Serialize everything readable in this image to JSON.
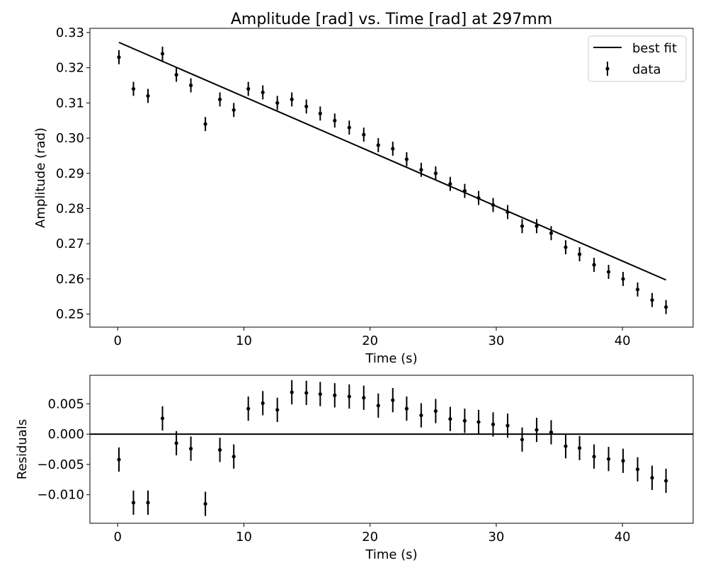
{
  "chart_data": [
    {
      "type": "scatter",
      "title": "Amplitude [rad] vs. Time [rad]  at 297mm",
      "xlabel": "Time (s)",
      "ylabel": "Amplitude (rad)",
      "xlim": [
        -2.2,
        45.6
      ],
      "ylim": [
        0.2463,
        0.3312
      ],
      "xticks": [
        0,
        10,
        20,
        30,
        40
      ],
      "xtick_labels": [
        "0",
        "10",
        "20",
        "30",
        "40"
      ],
      "yticks": [
        0.25,
        0.26,
        0.27,
        0.28,
        0.29,
        0.3,
        0.31,
        0.32,
        0.33
      ],
      "ytick_labels": [
        "0.25",
        "0.26",
        "0.27",
        "0.28",
        "0.29",
        "0.30",
        "0.31",
        "0.32",
        "0.33"
      ],
      "grid": false,
      "legend": {
        "position": "top-right",
        "entries": [
          "best fit",
          "data"
        ]
      },
      "series": [
        {
          "name": "data",
          "style": "errorbar",
          "x": [
            0.1,
            1.25,
            2.4,
            3.55,
            4.65,
            5.8,
            6.95,
            8.1,
            9.2,
            10.35,
            11.5,
            12.65,
            13.8,
            14.95,
            16.05,
            17.2,
            18.35,
            19.5,
            20.65,
            21.8,
            22.9,
            24.05,
            25.2,
            26.35,
            27.5,
            28.6,
            29.75,
            30.9,
            32.05,
            33.2,
            34.35,
            35.5,
            36.6,
            37.75,
            38.9,
            40.05,
            41.2,
            42.35,
            43.45
          ],
          "y": [
            0.323,
            0.314,
            0.312,
            0.324,
            0.318,
            0.315,
            0.304,
            0.311,
            0.308,
            0.314,
            0.313,
            0.31,
            0.311,
            0.309,
            0.307,
            0.305,
            0.303,
            0.301,
            0.298,
            0.297,
            0.294,
            0.291,
            0.29,
            0.287,
            0.285,
            0.283,
            0.281,
            0.279,
            0.275,
            0.275,
            0.273,
            0.269,
            0.267,
            0.264,
            0.262,
            0.26,
            0.257,
            0.254,
            0.252
          ],
          "yerr": 0.002,
          "color": "#000000"
        },
        {
          "name": "best fit",
          "style": "line",
          "x": [
            0.1,
            43.45
          ],
          "y": [
            0.3272,
            0.2597
          ],
          "color": "#000000"
        }
      ]
    },
    {
      "type": "scatter",
      "title": "",
      "xlabel": "Time (s)",
      "ylabel": "Residuals",
      "xlim": [
        -2.2,
        45.6
      ],
      "ylim": [
        -0.0147,
        0.0097
      ],
      "xticks": [
        0,
        10,
        20,
        30,
        40
      ],
      "xtick_labels": [
        "0",
        "10",
        "20",
        "30",
        "40"
      ],
      "yticks": [
        -0.01,
        -0.005,
        0.0,
        0.005
      ],
      "ytick_labels": [
        "−0.010",
        "−0.005",
        "0.000",
        "0.005"
      ],
      "grid": false,
      "reference_line_y": 0,
      "series": [
        {
          "style": "errorbar",
          "x": [
            0.1,
            1.25,
            2.4,
            3.55,
            4.65,
            5.8,
            6.95,
            8.1,
            9.2,
            10.35,
            11.5,
            12.65,
            13.8,
            14.95,
            16.05,
            17.2,
            18.35,
            19.5,
            20.65,
            21.8,
            22.9,
            24.05,
            25.2,
            26.35,
            27.5,
            28.6,
            29.75,
            30.9,
            32.05,
            33.2,
            34.35,
            35.5,
            36.6,
            37.75,
            38.9,
            40.05,
            41.2,
            42.35,
            43.45
          ],
          "y": [
            -0.0042,
            -0.0113,
            -0.0113,
            0.0026,
            -0.0015,
            -0.0024,
            -0.0115,
            -0.0026,
            -0.0037,
            0.0042,
            0.0051,
            0.004,
            0.0069,
            0.0068,
            0.0066,
            0.0064,
            0.0062,
            0.006,
            0.0047,
            0.0056,
            0.0042,
            0.0031,
            0.0038,
            0.0025,
            0.0022,
            0.002,
            0.0016,
            0.0014,
            -0.0009,
            0.0007,
            0.0003,
            -0.002,
            -0.0023,
            -0.0037,
            -0.0041,
            -0.0044,
            -0.0058,
            -0.0072,
            -0.0077
          ],
          "yerr": 0.002,
          "color": "#000000"
        }
      ]
    }
  ]
}
